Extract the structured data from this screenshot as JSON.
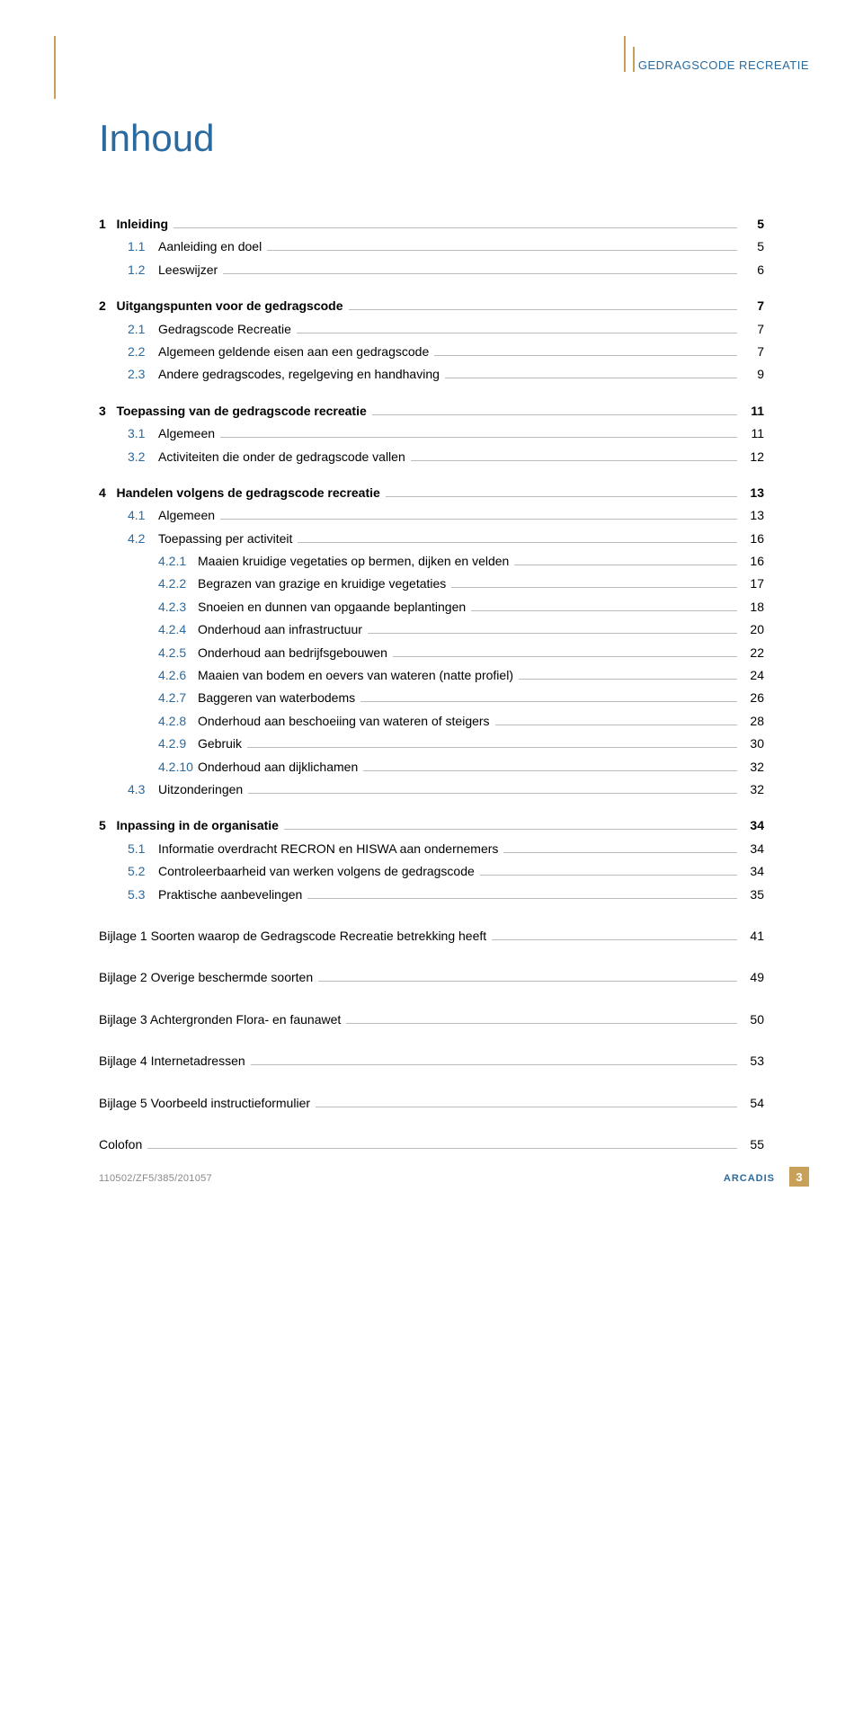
{
  "header": {
    "running_title": "GEDRAGSCODE RECREATIE"
  },
  "title": "Inhoud",
  "colors": {
    "accent_blue": "#2a6a9e",
    "accent_gold": "#c8a05a",
    "leader_gray": "#bbbbbb",
    "footer_gray": "#888888",
    "background": "#ffffff"
  },
  "toc": [
    {
      "level": 0,
      "num": "1",
      "label": "Inleiding",
      "page": "5"
    },
    {
      "level": 1,
      "num": "1.1",
      "label": "Aanleiding en doel",
      "page": "5"
    },
    {
      "level": 1,
      "num": "1.2",
      "label": "Leeswijzer",
      "page": "6"
    },
    {
      "level": 0,
      "num": "2",
      "label": "Uitgangspunten voor de gedragscode",
      "page": "7"
    },
    {
      "level": 1,
      "num": "2.1",
      "label": "Gedragscode Recreatie",
      "page": "7"
    },
    {
      "level": 1,
      "num": "2.2",
      "label": "Algemeen geldende eisen aan een gedragscode",
      "page": "7"
    },
    {
      "level": 1,
      "num": "2.3",
      "label": "Andere gedragscodes, regelgeving en handhaving",
      "page": "9"
    },
    {
      "level": 0,
      "num": "3",
      "label": "Toepassing van de gedragscode recreatie",
      "page": "11"
    },
    {
      "level": 1,
      "num": "3.1",
      "label": "Algemeen",
      "page": "11"
    },
    {
      "level": 1,
      "num": "3.2",
      "label": "Activiteiten die onder de gedragscode vallen",
      "page": "12"
    },
    {
      "level": 0,
      "num": "4",
      "label": "Handelen volgens de gedragscode recreatie",
      "page": "13"
    },
    {
      "level": 1,
      "num": "4.1",
      "label": "Algemeen",
      "page": "13"
    },
    {
      "level": 1,
      "num": "4.2",
      "label": "Toepassing per activiteit",
      "page": "16"
    },
    {
      "level": 2,
      "num": "4.2.1",
      "label": "Maaien kruidige vegetaties op bermen, dijken en velden",
      "page": "16"
    },
    {
      "level": 2,
      "num": "4.2.2",
      "label": "Begrazen van grazige en kruidige vegetaties",
      "page": "17"
    },
    {
      "level": 2,
      "num": "4.2.3",
      "label": "Snoeien en dunnen van opgaande beplantingen",
      "page": "18"
    },
    {
      "level": 2,
      "num": "4.2.4",
      "label": "Onderhoud aan infrastructuur",
      "page": "20"
    },
    {
      "level": 2,
      "num": "4.2.5",
      "label": "Onderhoud aan bedrijfsgebouwen",
      "page": "22"
    },
    {
      "level": 2,
      "num": "4.2.6",
      "label": "Maaien van bodem en oevers van wateren (natte profiel)",
      "page": "24"
    },
    {
      "level": 2,
      "num": "4.2.7",
      "label": "Baggeren van waterbodems",
      "page": "26"
    },
    {
      "level": 2,
      "num": "4.2.8",
      "label": "Onderhoud aan beschoeiing van wateren of steigers",
      "page": "28"
    },
    {
      "level": 2,
      "num": "4.2.9",
      "label": "Gebruik",
      "page": "30"
    },
    {
      "level": 2,
      "num": "4.2.10",
      "label": "Onderhoud aan dijklichamen",
      "page": "32"
    },
    {
      "level": 1,
      "num": "4.3",
      "label": "Uitzonderingen",
      "page": "32"
    },
    {
      "level": 0,
      "num": "5",
      "label": "Inpassing in de organisatie",
      "page": "34"
    },
    {
      "level": 1,
      "num": "5.1",
      "label": "Informatie overdracht RECRON en HISWA aan ondernemers",
      "page": "34"
    },
    {
      "level": 1,
      "num": "5.2",
      "label": "Controleerbaarheid van werken volgens de gedragscode",
      "page": "34"
    },
    {
      "level": 1,
      "num": "5.3",
      "label": "Praktische aanbevelingen",
      "page": "35"
    }
  ],
  "appendices": [
    {
      "label": "Bijlage 1 Soorten waarop de Gedragscode Recreatie betrekking heeft",
      "page": "41"
    },
    {
      "label": "Bijlage 2 Overige beschermde soorten",
      "page": "49"
    },
    {
      "label": "Bijlage 3 Achtergronden Flora- en faunawet",
      "page": "50"
    },
    {
      "label": "Bijlage 4 Internetadressen",
      "page": "53"
    },
    {
      "label": "Bijlage 5 Voorbeeld instructieformulier",
      "page": "54"
    },
    {
      "label": "Colofon",
      "page": "55"
    }
  ],
  "footer": {
    "ref": "110502/ZF5/385/201057",
    "brand": "ARCADIS",
    "page_num": "3"
  }
}
